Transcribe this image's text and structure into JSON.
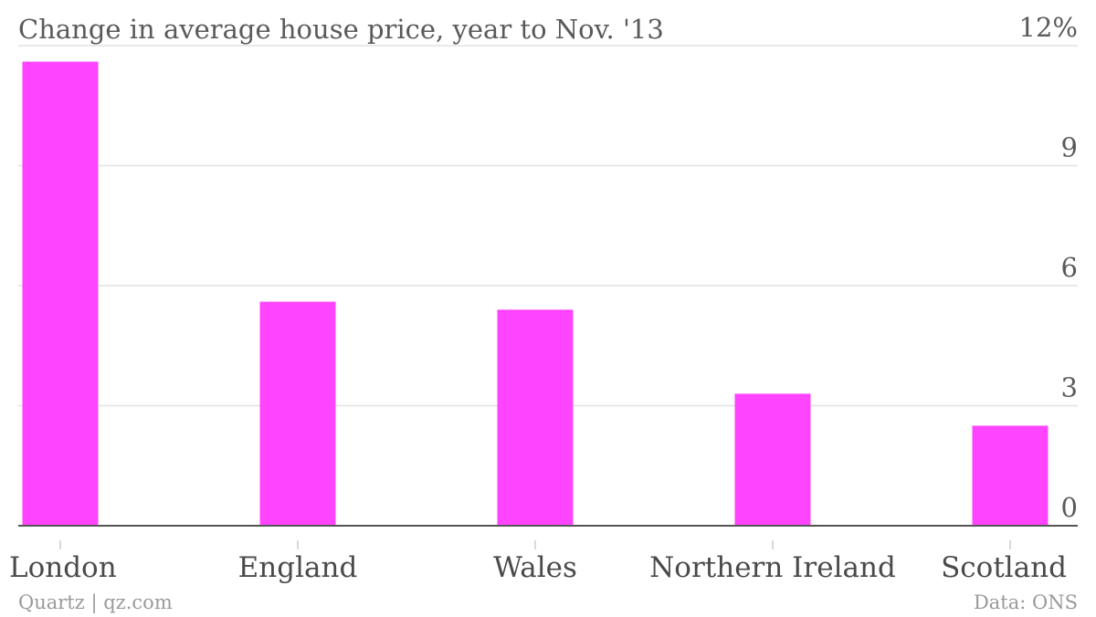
{
  "colors": {
    "bar": "#ff44ff",
    "grid": "#e2e2e2",
    "baseline": "#555555",
    "text": "#5a5a5a",
    "footer": "#9a9a9a"
  },
  "footer": {
    "source_left": "Quartz | qz.com",
    "source_right": "Data: ONS"
  },
  "chart_data": {
    "type": "bar",
    "title": "Change in average house price, year to Nov. '13",
    "categories": [
      "London",
      "England",
      "Wales",
      "Northern Ireland",
      "Scotland"
    ],
    "values": [
      11.6,
      5.6,
      5.4,
      3.3,
      2.5
    ],
    "ylim": [
      0,
      12
    ],
    "yticks": [
      0,
      3,
      6,
      9,
      12
    ],
    "ytick_labels": [
      "0",
      "3",
      "6",
      "9",
      "12%"
    ],
    "y_axis_position": "right",
    "grid": true,
    "legend": "none"
  }
}
